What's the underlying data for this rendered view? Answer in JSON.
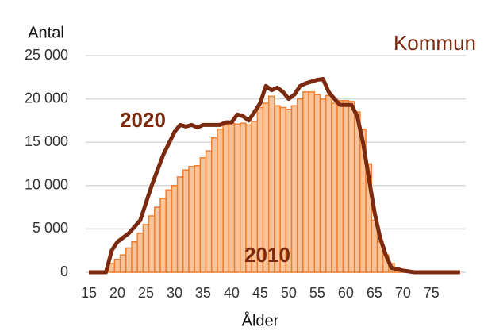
{
  "chart_data": {
    "type": "bar_line",
    "title": "Kommun",
    "y_label": "Antal",
    "x_label": "Ålder",
    "annotations": [
      "2020",
      "2010"
    ],
    "xlim": [
      15,
      81
    ],
    "xticks": [
      15,
      20,
      25,
      30,
      35,
      40,
      45,
      50,
      55,
      60,
      65,
      70,
      75
    ],
    "ylim": [
      0,
      25000
    ],
    "yticks": [
      0,
      {
        "value": 5000,
        "label": "5 000"
      },
      {
        "value": 10000,
        "label": "10 000"
      },
      {
        "value": 15000,
        "label": "15 000"
      },
      {
        "value": 20000,
        "label": "20 000"
      },
      {
        "value": 25000,
        "label": "25 000"
      }
    ],
    "grid": true,
    "bars": {
      "name": "2010",
      "color": "#f9c49a",
      "edge_color": "#f07f30",
      "x": [
        19,
        20,
        21,
        22,
        23,
        24,
        25,
        26,
        27,
        28,
        29,
        30,
        31,
        32,
        33,
        34,
        35,
        36,
        37,
        38,
        39,
        40,
        41,
        42,
        43,
        44,
        45,
        46,
        47,
        48,
        49,
        50,
        51,
        52,
        53,
        54,
        55,
        56,
        57,
        58,
        59,
        60,
        61,
        62,
        63,
        64,
        65,
        66,
        67,
        68,
        69,
        70,
        71,
        72
      ],
      "values": [
        1000,
        1500,
        2000,
        2800,
        3500,
        4500,
        5500,
        6500,
        7500,
        8500,
        9500,
        10000,
        11000,
        11800,
        12200,
        12300,
        13200,
        14000,
        15500,
        16500,
        17000,
        17200,
        17100,
        17200,
        17000,
        17400,
        19000,
        19500,
        20300,
        19200,
        19000,
        18800,
        19200,
        20000,
        20800,
        20800,
        20500,
        20000,
        20400,
        19500,
        19800,
        19800,
        19700,
        18500,
        16500,
        12500,
        6000,
        3500,
        2000,
        1000,
        500,
        300,
        200,
        100
      ]
    },
    "line": {
      "name": "2020",
      "color": "#7b2a0f",
      "x": [
        15,
        18,
        19,
        20,
        22,
        24,
        26,
        28,
        30,
        31,
        32,
        33,
        34,
        35,
        38,
        39,
        40,
        41,
        42,
        43,
        44,
        45,
        46,
        47,
        48,
        49,
        50,
        51,
        52,
        53,
        54,
        55,
        56,
        57,
        58,
        59,
        60,
        61,
        62,
        63,
        64,
        65,
        66,
        67,
        68,
        70,
        72,
        80
      ],
      "values": [
        0,
        0,
        2500,
        3500,
        4500,
        6000,
        10000,
        13500,
        16200,
        17000,
        16800,
        17000,
        16700,
        17000,
        17000,
        17300,
        17300,
        18200,
        18000,
        17500,
        18500,
        19500,
        21500,
        21000,
        21300,
        20800,
        20000,
        20500,
        21500,
        21800,
        22000,
        22200,
        22300,
        20800,
        20000,
        19300,
        19300,
        19300,
        18000,
        15000,
        11000,
        7000,
        4000,
        2000,
        500,
        200,
        0,
        0
      ]
    }
  }
}
